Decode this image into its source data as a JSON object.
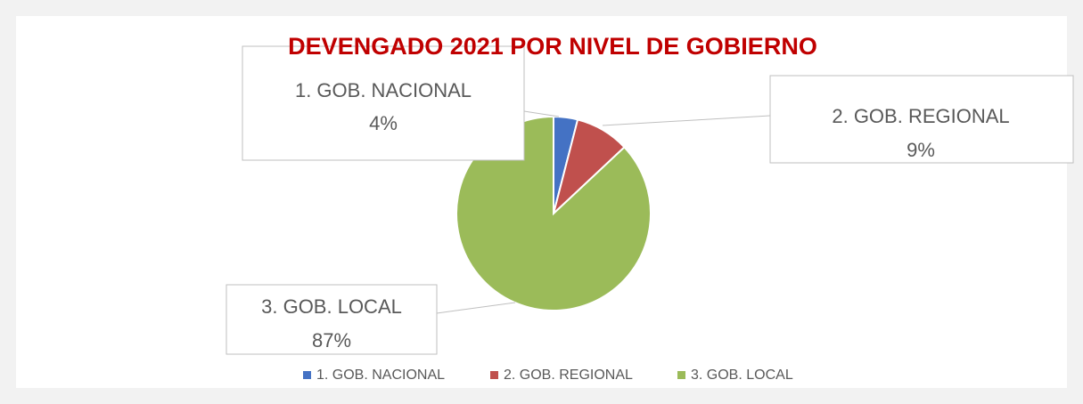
{
  "chart_data": {
    "type": "pie",
    "title": "DEVENGADO 2021 POR NIVEL DE GOBIERNO",
    "categories": [
      "1. GOB. NACIONAL",
      "2. GOB. REGIONAL",
      "3. GOB. LOCAL"
    ],
    "values": [
      4,
      9,
      87
    ],
    "value_labels": [
      "4%",
      "9%",
      "87%"
    ],
    "colors": [
      "#4472c4",
      "#c0504d",
      "#9bbb59"
    ],
    "legend": "bottom"
  }
}
